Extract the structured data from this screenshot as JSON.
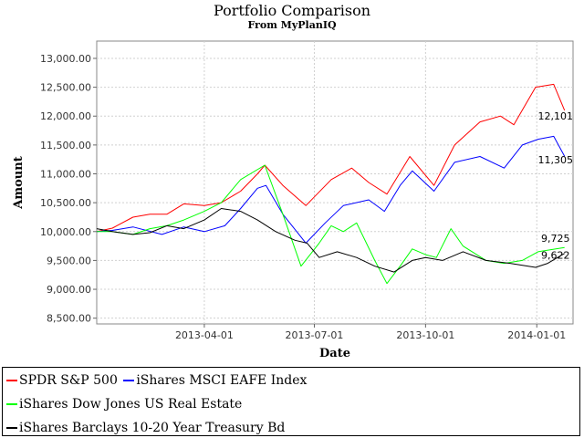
{
  "chart_data": {
    "type": "line",
    "title": "Portfolio Comparison",
    "subtitle": "From MyPlanIQ",
    "xlabel": "Date",
    "ylabel": "Amount",
    "xlim": [
      "2013-01-02",
      "2014-01-31"
    ],
    "ylim": [
      8400,
      13300
    ],
    "x_ticks": [
      "2013-04-01",
      "2013-07-01",
      "2013-10-01",
      "2014-01-01"
    ],
    "y_ticks": [
      8500,
      9000,
      9500,
      10000,
      10500,
      11000,
      11500,
      12000,
      12500,
      13000
    ],
    "y_tick_labels": [
      "8,500.00",
      "9,000.00",
      "9,500.00",
      "10,000.00",
      "10,500.00",
      "11,000.00",
      "11,500.00",
      "12,000.00",
      "12,500.00",
      "13,000.00"
    ],
    "grid": true,
    "legend_position": "bottom",
    "series": [
      {
        "name": "SPDR S&P 500",
        "color": "#ff0000",
        "end_label": "12,101",
        "points": [
          [
            "2013-01-02",
            10000
          ],
          [
            "2013-01-15",
            10060
          ],
          [
            "2013-02-01",
            10250
          ],
          [
            "2013-02-15",
            10300
          ],
          [
            "2013-03-01",
            10300
          ],
          [
            "2013-03-15",
            10480
          ],
          [
            "2013-04-01",
            10450
          ],
          [
            "2013-04-15",
            10500
          ],
          [
            "2013-05-01",
            10700
          ],
          [
            "2013-05-15",
            11000
          ],
          [
            "2013-05-21",
            11150
          ],
          [
            "2013-06-05",
            10800
          ],
          [
            "2013-06-24",
            10450
          ],
          [
            "2013-07-15",
            10900
          ],
          [
            "2013-08-01",
            11100
          ],
          [
            "2013-08-15",
            10850
          ],
          [
            "2013-08-30",
            10650
          ],
          [
            "2013-09-18",
            11300
          ],
          [
            "2013-10-08",
            10800
          ],
          [
            "2013-10-25",
            11500
          ],
          [
            "2013-11-15",
            11900
          ],
          [
            "2013-12-02",
            12000
          ],
          [
            "2013-12-13",
            11850
          ],
          [
            "2013-12-31",
            12500
          ],
          [
            "2014-01-15",
            12550
          ],
          [
            "2014-01-24",
            12101
          ]
        ]
      },
      {
        "name": "iShares MSCI EAFE Index",
        "color": "#0000ff",
        "end_label": "11,305",
        "points": [
          [
            "2013-01-02",
            10000
          ],
          [
            "2013-01-15",
            10020
          ],
          [
            "2013-02-01",
            10080
          ],
          [
            "2013-02-25",
            9950
          ],
          [
            "2013-03-15",
            10080
          ],
          [
            "2013-04-01",
            10000
          ],
          [
            "2013-04-18",
            10100
          ],
          [
            "2013-05-01",
            10400
          ],
          [
            "2013-05-15",
            10750
          ],
          [
            "2013-05-22",
            10800
          ],
          [
            "2013-06-05",
            10300
          ],
          [
            "2013-06-24",
            9800
          ],
          [
            "2013-07-10",
            10150
          ],
          [
            "2013-07-25",
            10450
          ],
          [
            "2013-08-15",
            10550
          ],
          [
            "2013-08-28",
            10350
          ],
          [
            "2013-09-10",
            10800
          ],
          [
            "2013-09-20",
            11050
          ],
          [
            "2013-10-08",
            10700
          ],
          [
            "2013-10-25",
            11200
          ],
          [
            "2013-11-15",
            11300
          ],
          [
            "2013-12-05",
            11100
          ],
          [
            "2013-12-20",
            11500
          ],
          [
            "2014-01-02",
            11600
          ],
          [
            "2014-01-15",
            11650
          ],
          [
            "2014-01-24",
            11305
          ]
        ]
      },
      {
        "name": "iShares Dow Jones US Real Estate",
        "color": "#00ff00",
        "end_label": "9,725",
        "points": [
          [
            "2013-01-02",
            10000
          ],
          [
            "2013-01-15",
            10000
          ],
          [
            "2013-02-01",
            9950
          ],
          [
            "2013-02-15",
            10050
          ],
          [
            "2013-03-01",
            10100
          ],
          [
            "2013-03-15",
            10200
          ],
          [
            "2013-04-01",
            10350
          ],
          [
            "2013-04-15",
            10500
          ],
          [
            "2013-05-01",
            10900
          ],
          [
            "2013-05-21",
            11150
          ],
          [
            "2013-06-05",
            10300
          ],
          [
            "2013-06-20",
            9400
          ],
          [
            "2013-07-05",
            9800
          ],
          [
            "2013-07-15",
            10100
          ],
          [
            "2013-07-25",
            10000
          ],
          [
            "2013-08-05",
            10150
          ],
          [
            "2013-08-20",
            9500
          ],
          [
            "2013-08-30",
            9100
          ],
          [
            "2013-09-10",
            9400
          ],
          [
            "2013-09-20",
            9700
          ],
          [
            "2013-10-01",
            9600
          ],
          [
            "2013-10-10",
            9550
          ],
          [
            "2013-10-22",
            10050
          ],
          [
            "2013-11-01",
            9750
          ],
          [
            "2013-11-20",
            9500
          ],
          [
            "2013-12-05",
            9450
          ],
          [
            "2013-12-20",
            9500
          ],
          [
            "2014-01-02",
            9650
          ],
          [
            "2014-01-24",
            9725
          ]
        ]
      },
      {
        "name": "iShares Barclays 10-20 Year Treasury Bd",
        "color": "#000000",
        "end_label": "9,622",
        "points": [
          [
            "2013-01-02",
            10050
          ],
          [
            "2013-01-15",
            10000
          ],
          [
            "2013-02-01",
            9950
          ],
          [
            "2013-02-15",
            9980
          ],
          [
            "2013-03-01",
            10100
          ],
          [
            "2013-03-15",
            10050
          ],
          [
            "2013-04-01",
            10200
          ],
          [
            "2013-04-15",
            10400
          ],
          [
            "2013-05-01",
            10350
          ],
          [
            "2013-05-15",
            10200
          ],
          [
            "2013-05-30",
            10000
          ],
          [
            "2013-06-15",
            9850
          ],
          [
            "2013-06-25",
            9800
          ],
          [
            "2013-07-05",
            9550
          ],
          [
            "2013-07-20",
            9650
          ],
          [
            "2013-08-05",
            9550
          ],
          [
            "2013-08-20",
            9400
          ],
          [
            "2013-09-05",
            9300
          ],
          [
            "2013-09-20",
            9500
          ],
          [
            "2013-10-01",
            9550
          ],
          [
            "2013-10-15",
            9500
          ],
          [
            "2013-11-01",
            9650
          ],
          [
            "2013-11-20",
            9500
          ],
          [
            "2013-12-10",
            9450
          ],
          [
            "2013-12-31",
            9380
          ],
          [
            "2014-01-10",
            9450
          ],
          [
            "2014-01-24",
            9622
          ]
        ]
      }
    ]
  }
}
